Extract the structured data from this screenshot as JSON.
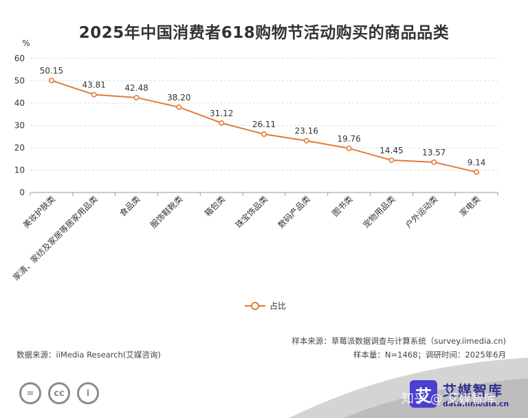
{
  "chart_data": {
    "type": "line",
    "title": "2025年中国消费者618购物节活动购买的商品品类",
    "ylabel": "%",
    "ylim": [
      0,
      60
    ],
    "yticks": [
      0,
      10,
      20,
      30,
      40,
      50,
      60
    ],
    "categories": [
      "美妆护肤类",
      "家清、家纺及家居等居家用品类",
      "食品类",
      "服饰鞋靴类",
      "箱包类",
      "珠宝饰品类",
      "数码产品类",
      "图书类",
      "宠物用品类",
      "户外运动类",
      "家电类"
    ],
    "series": [
      {
        "name": "占比",
        "values": [
          50.15,
          43.81,
          42.48,
          38.2,
          31.12,
          26.11,
          23.16,
          19.76,
          14.45,
          13.57,
          9.14
        ],
        "labels": [
          "50.15",
          "43.81",
          "42.48",
          "38.20",
          "31.12",
          "26.11",
          "23.16",
          "19.76",
          "14.45",
          "13.57",
          "9.14"
        ]
      }
    ],
    "color": "#e07b39",
    "grid": true,
    "legend": "bottom-center"
  },
  "source": {
    "sample_source": "样本来源：草莓派数据调查与计算系统（survey.iimedia.cn)",
    "data_source": "数据来源：iiMedia Research(艾媒咨询)",
    "sample_info": "样本量：N=1468；调研时间：2025年6月"
  },
  "brand": {
    "logo_char": "艾",
    "name": "艾媒智库",
    "url": "data.iimedia.cn",
    "watermark": "知乎 @ 艾媒智库"
  },
  "license": {
    "icons": [
      "=",
      "cc",
      "i"
    ]
  }
}
